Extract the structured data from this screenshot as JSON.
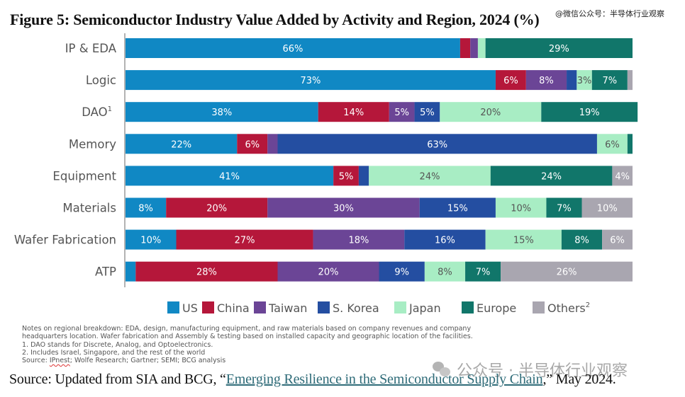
{
  "title": "Figure 5: Semiconductor Industry Value Added by Activity and Region, 2024 (%)",
  "watermark_top": "@微信公众号：半导体行业观察",
  "watermark_bottom": "公众号 · 半导体行业观察",
  "colors": {
    "US": "#1088c4",
    "China": "#b5173a",
    "Taiwan": "#6b4596",
    "S. Korea": "#244ea1",
    "Japan": "#a8edc4",
    "Europe": "#11766a",
    "Others": "#a9a6b0"
  },
  "chart_data": {
    "type": "bar",
    "orientation": "horizontal",
    "stacked": true,
    "title": "Semiconductor Industry Value Added by Activity and Region, 2024 (%)",
    "xlabel": "",
    "ylabel": "",
    "xlim": [
      0,
      100
    ],
    "grid": false,
    "legend_position": "bottom",
    "categories": [
      "IP & EDA",
      "Logic",
      "DAO",
      "Memory",
      "Equipment",
      "Materials",
      "Wafer Fabrication",
      "ATP"
    ],
    "category_superscripts": [
      "",
      "",
      "1",
      "",
      "",
      "",
      "",
      ""
    ],
    "series": [
      {
        "name": "US",
        "legend_label": "US",
        "values": [
          66,
          73,
          38,
          22,
          41,
          8,
          10,
          2
        ],
        "labels": [
          "66%",
          "73%",
          "38%",
          "22%",
          "41%",
          "8%",
          "10%",
          ""
        ],
        "label_color": "#ffffff"
      },
      {
        "name": "China",
        "legend_label": "China",
        "values": [
          2,
          6,
          14,
          6,
          5,
          20,
          27,
          28
        ],
        "labels": [
          "",
          "6%",
          "14%",
          "6%",
          "5%",
          "20%",
          "27%",
          "28%"
        ],
        "label_color": "#ffffff"
      },
      {
        "name": "Taiwan",
        "legend_label": "Taiwan",
        "values": [
          1.5,
          8,
          5,
          2,
          0,
          30,
          18,
          20
        ],
        "labels": [
          "",
          "8%",
          "5%",
          "",
          "",
          "30%",
          "18%",
          "20%"
        ],
        "label_color": "#ffffff"
      },
      {
        "name": "S. Korea",
        "legend_label": "S. Korea",
        "values": [
          0,
          2,
          5,
          63,
          2,
          15,
          16,
          9
        ],
        "labels": [
          "",
          "",
          "5%",
          "63%",
          "",
          "15%",
          "16%",
          "9%"
        ],
        "label_color": "#ffffff"
      },
      {
        "name": "Japan",
        "legend_label": "Japan",
        "values": [
          1.5,
          3,
          20,
          6,
          24,
          10,
          15,
          8
        ],
        "labels": [
          "",
          "3%",
          "20%",
          "6%",
          "24%",
          "10%",
          "15%",
          "8%"
        ],
        "label_color": "#555555"
      },
      {
        "name": "Europe",
        "legend_label": "Europe",
        "values": [
          29,
          7,
          19,
          1,
          24,
          7,
          8,
          7
        ],
        "labels": [
          "29%",
          "7%",
          "19%",
          "",
          "24%",
          "7%",
          "8%",
          "7%"
        ],
        "label_color": "#ffffff"
      },
      {
        "name": "Others",
        "legend_label": "Others",
        "legend_superscript": "2",
        "values": [
          0,
          1,
          0,
          0,
          4,
          10,
          6,
          26
        ],
        "labels": [
          "",
          "",
          "",
          "",
          "4%",
          "10%",
          "6%",
          "26%"
        ],
        "label_color": "#ffffff"
      }
    ]
  },
  "notes": {
    "line1": "Notes on regional breakdown: EDA, design, manufacturing equipment, and raw materials based on company revenues and company",
    "line2": "headquarters location. Wafer fabrication and Assembly & testing based on installed capacity and geographic location of the facilities.",
    "line3": "1. DAO stands for Discrete, Analog, and Optoelectronics.",
    "line4": "2. Includes Israel, Singapore, and the rest of the world",
    "line5_prefix": "Source: ",
    "line5_ipnest": "IPnest",
    "line5_rest": "; Wolfe Research; Gartner; SEMI; BCG analysis"
  },
  "source": {
    "prefix": "Source: Updated from SIA and BCG, “",
    "link_text": "Emerging Resilience in the Semiconductor Supply Chain",
    "suffix": ",” May 2024."
  }
}
